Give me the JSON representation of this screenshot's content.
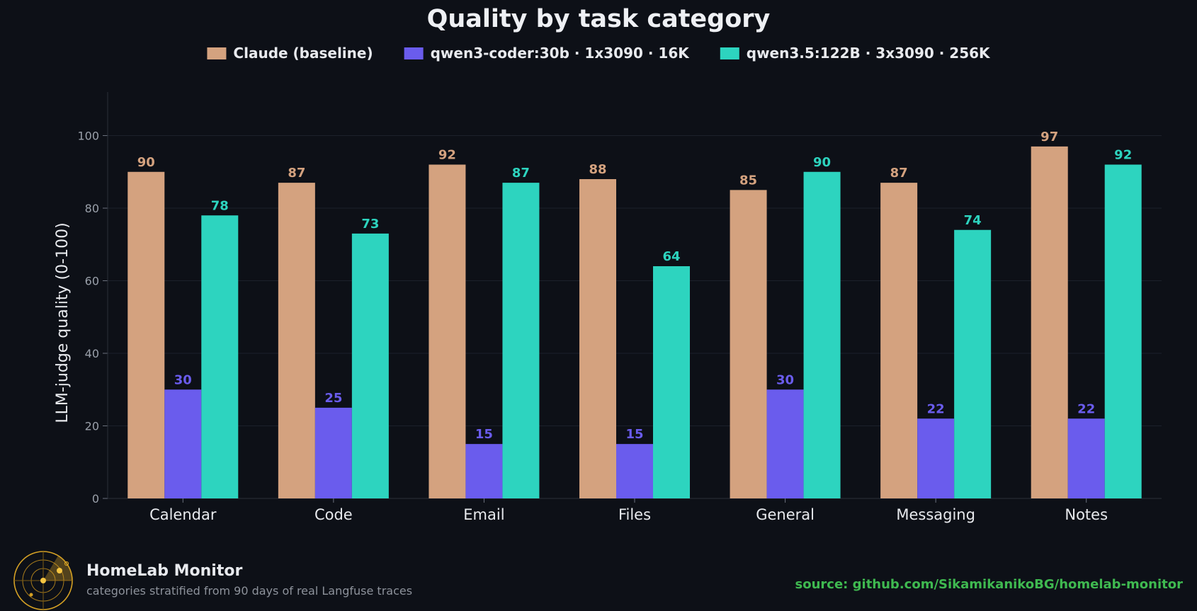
{
  "chart_data": {
    "type": "bar",
    "title": "Quality by task category",
    "ylabel": "LLM-judge quality (0-100)",
    "xlabel": "",
    "ylim": [
      0,
      112
    ],
    "yticks": [
      0,
      20,
      40,
      60,
      80,
      100
    ],
    "grid": true,
    "legend_position": "top",
    "categories": [
      "Calendar",
      "Code",
      "Email",
      "Files",
      "General",
      "Messaging",
      "Notes"
    ],
    "series": [
      {
        "name": "Claude (baseline)",
        "color": "#d4a27f",
        "values": [
          90,
          87,
          92,
          88,
          85,
          87,
          97
        ]
      },
      {
        "name": "qwen3-coder:30b · 1x3090 · 16K",
        "color": "#6a5ced",
        "values": [
          30,
          25,
          15,
          15,
          30,
          22,
          22
        ]
      },
      {
        "name": "qwen3.5:122B · 3x3090 · 256K",
        "color": "#2dd4bf",
        "values": [
          78,
          73,
          87,
          64,
          90,
          74,
          92
        ]
      }
    ]
  },
  "footer": {
    "brand": "HomeLab Monitor",
    "subtitle": "categories stratified from 90 days of real Langfuse traces",
    "source": "source: github.com/SikamikanikoBG/homelab-monitor"
  },
  "icons": {
    "logo": "radar-logo-icon"
  }
}
